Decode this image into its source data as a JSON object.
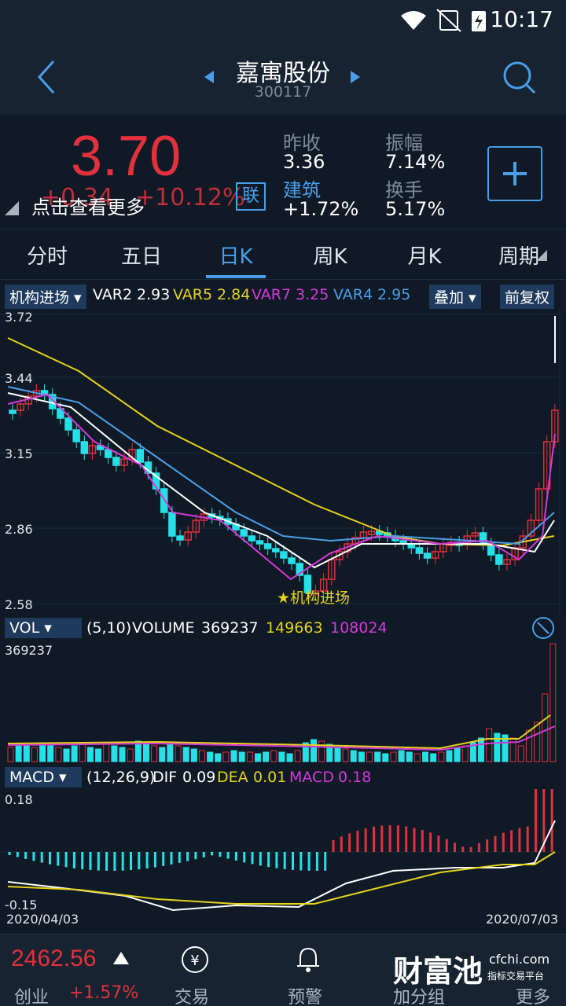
{
  "status": {
    "time": "10:17"
  },
  "header": {
    "title": "嘉寓股份",
    "code": "300117"
  },
  "quote": {
    "price": "3.70",
    "change": "+0.34",
    "change_pct": "+10.12%",
    "tip": "点击查看更多",
    "lian": "联",
    "prev_close_label": "昨收",
    "prev_close": "3.36",
    "sector_label": "建筑",
    "sector_pct": "+1.72%",
    "amplitude_label": "振幅",
    "amplitude": "7.14%",
    "turnover_label": "换手",
    "turnover": "5.17%"
  },
  "tabs": [
    "分时",
    "五日",
    "日K",
    "周K",
    "月K",
    "周期"
  ],
  "main_indicator": {
    "name": "机构进场",
    "var2_label": "VAR2",
    "var2": "2.93",
    "var5_label": "VAR5",
    "var5": "2.84",
    "var7_label": "VAR7",
    "var7": "3.25",
    "var4_label": "VAR4",
    "var4": "2.95",
    "overlay": "叠加",
    "adjust": "前复权",
    "signal": "★机构进场",
    "y_ticks": [
      "3.72",
      "3.44",
      "3.15",
      "2.86",
      "2.58"
    ]
  },
  "volume": {
    "name": "VOL",
    "params": "(5,10)",
    "label": "VOLUME",
    "value": "369237",
    "ma5": "149663",
    "ma10": "108024",
    "max_tick": "369237"
  },
  "macd": {
    "name": "MACD",
    "params": "(12,26,9)",
    "dif_label": "DIF",
    "dif": "0.09",
    "dea_label": "DEA",
    "dea": "0.01",
    "macd_label": "MACD",
    "macd": "0.18",
    "top_tick": "0.18",
    "bottom_tick": "-0.15",
    "start_date": "2020/04/03",
    "end_date": "2020/07/03"
  },
  "bottom": {
    "index_value": "2462.56",
    "index_name": "创业",
    "index_pct": "+1.57%",
    "nav": [
      "交易",
      "预警",
      "加分组",
      "更多"
    ],
    "brand": "财富池",
    "brand_url": "cfchi.com",
    "brand_sub": "指标交易平台"
  },
  "colors": {
    "up": "#e1313d",
    "down": "#25e0e6",
    "accent": "#4a9ee8",
    "yellow": "#e6d21a",
    "magenta": "#d43ad8"
  }
}
